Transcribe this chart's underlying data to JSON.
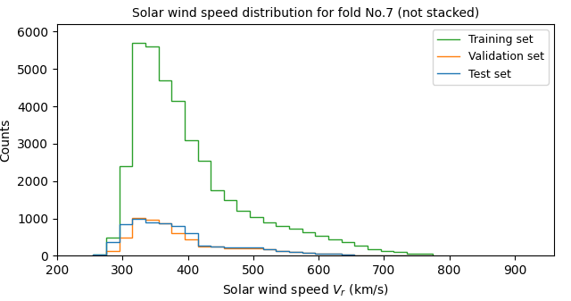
{
  "title": "Solar wind speed distribution for fold No.7 (not stacked)",
  "xlabel": "Solar wind speed $V_r$ (km/s)",
  "ylabel": "Counts",
  "xlim": [
    200,
    960
  ],
  "ylim": [
    0,
    6200
  ],
  "xticks": [
    200,
    300,
    400,
    500,
    600,
    700,
    800,
    900
  ],
  "yticks": [
    0,
    1000,
    2000,
    3000,
    4000,
    5000,
    6000
  ],
  "bin_edges": [
    255,
    275,
    295,
    315,
    335,
    355,
    375,
    395,
    415,
    435,
    455,
    475,
    495,
    515,
    535,
    555,
    575,
    595,
    615,
    635,
    655,
    675,
    695,
    715,
    735,
    755,
    775
  ],
  "training_counts": [
    25,
    500,
    2400,
    5700,
    5600,
    4700,
    4150,
    3100,
    2550,
    1750,
    1500,
    1200,
    1050,
    900,
    800,
    720,
    630,
    530,
    450,
    360,
    280,
    180,
    130,
    100,
    70,
    50
  ],
  "validation_counts": [
    5,
    120,
    490,
    1020,
    970,
    880,
    600,
    450,
    260,
    240,
    200,
    210,
    200,
    180,
    130,
    100,
    80,
    60,
    50,
    30,
    20,
    10,
    5,
    0,
    0,
    0
  ],
  "test_counts": [
    30,
    380,
    850,
    1000,
    900,
    870,
    810,
    600,
    270,
    240,
    220,
    230,
    220,
    180,
    130,
    100,
    80,
    60,
    50,
    30,
    20,
    10,
    5,
    0,
    0,
    0
  ],
  "training_color": "#2ca02c",
  "validation_color": "#ff7f0e",
  "test_color": "#1f77b4",
  "background_color": "#ffffff",
  "legend_labels": [
    "Training set",
    "Validation set",
    "Test set"
  ]
}
